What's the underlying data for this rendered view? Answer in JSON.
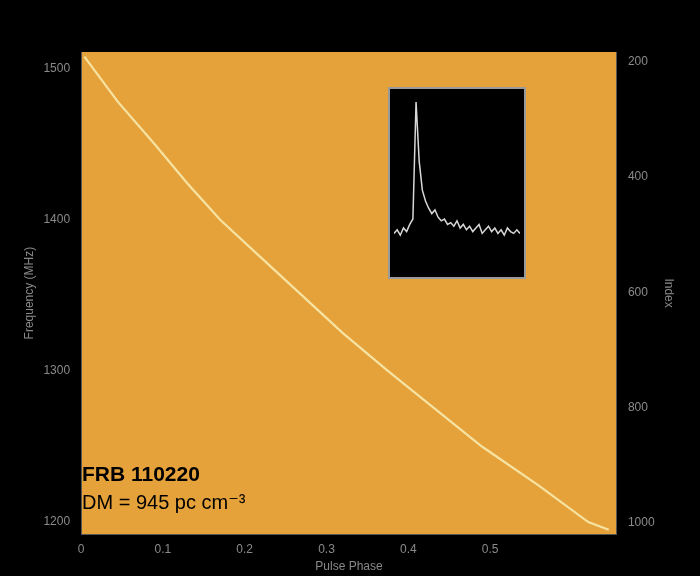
{
  "chart_data": [
    {
      "type": "line",
      "x_label": "Pulse Phase",
      "y_label": "Frequency (MHz)",
      "y2_label": "Index",
      "annotations": [
        "FRB 110220",
        "DM = 945 pc cm⁻³"
      ],
      "x": [
        0.004,
        0.045,
        0.09,
        0.13,
        0.17,
        0.22,
        0.27,
        0.32,
        0.375,
        0.43,
        0.49,
        0.56,
        0.62,
        0.645
      ],
      "values": [
        1508,
        1478,
        1450,
        1424,
        1400,
        1375,
        1350,
        1325,
        1300,
        1276,
        1250,
        1224,
        1200,
        1195
      ],
      "color": "#f6e3a2",
      "xlim": [
        0,
        0.655
      ],
      "xticks": [
        0,
        0.1,
        0.2,
        0.3,
        0.4,
        0.5
      ],
      "ylim": [
        1192,
        1511
      ],
      "yticks": [
        1200,
        1300,
        1400,
        1500
      ],
      "y2lim": [
        183,
        1020
      ],
      "y2ticks": [
        200,
        400,
        600,
        800,
        1000
      ],
      "grid": false
    },
    {
      "type": "line",
      "x": [
        0,
        0.025,
        0.05,
        0.075,
        0.1,
        0.125,
        0.15,
        0.175,
        0.2,
        0.225,
        0.25,
        0.275,
        0.3,
        0.325,
        0.35,
        0.375,
        0.4,
        0.425,
        0.45,
        0.475,
        0.5,
        0.525,
        0.55,
        0.575,
        0.6,
        0.625,
        0.65,
        0.675,
        0.7,
        0.725,
        0.75,
        0.775,
        0.8,
        0.825,
        0.85,
        0.875,
        0.9,
        0.925,
        0.95,
        0.975,
        1
      ],
      "values": [
        0.22,
        0.24,
        0.21,
        0.25,
        0.23,
        0.27,
        0.3,
        0.95,
        0.62,
        0.46,
        0.4,
        0.36,
        0.33,
        0.35,
        0.31,
        0.29,
        0.3,
        0.27,
        0.28,
        0.26,
        0.29,
        0.25,
        0.27,
        0.24,
        0.26,
        0.23,
        0.25,
        0.27,
        0.22,
        0.24,
        0.26,
        0.23,
        0.25,
        0.22,
        0.24,
        0.21,
        0.25,
        0.23,
        0.22,
        0.24,
        0.22
      ],
      "color": "#d8d8d8",
      "xlim": [
        0,
        1
      ],
      "ylim": [
        0,
        1
      ],
      "tick_labels": false,
      "grid": false
    }
  ]
}
